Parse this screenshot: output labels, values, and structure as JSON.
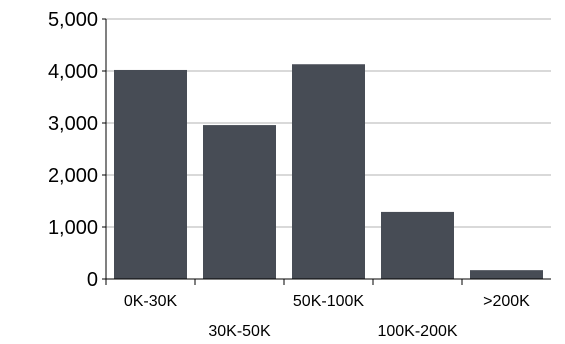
{
  "chart_data": {
    "type": "bar",
    "categories": [
      "0K-30K",
      "30K-50K",
      "50K-100K",
      "100K-200K",
      ">200K"
    ],
    "values": [
      4020,
      2960,
      4130,
      1290,
      170
    ],
    "ylim": [
      0,
      5000
    ],
    "y_ticks": [
      0,
      1000,
      2000,
      3000,
      4000,
      5000
    ],
    "y_tick_labels": [
      "0",
      "1,000",
      "2,000",
      "3,000",
      "4,000",
      "5,000"
    ],
    "grid": true,
    "bar_color": "#474c55",
    "grid_color": "#d9d9d9"
  }
}
